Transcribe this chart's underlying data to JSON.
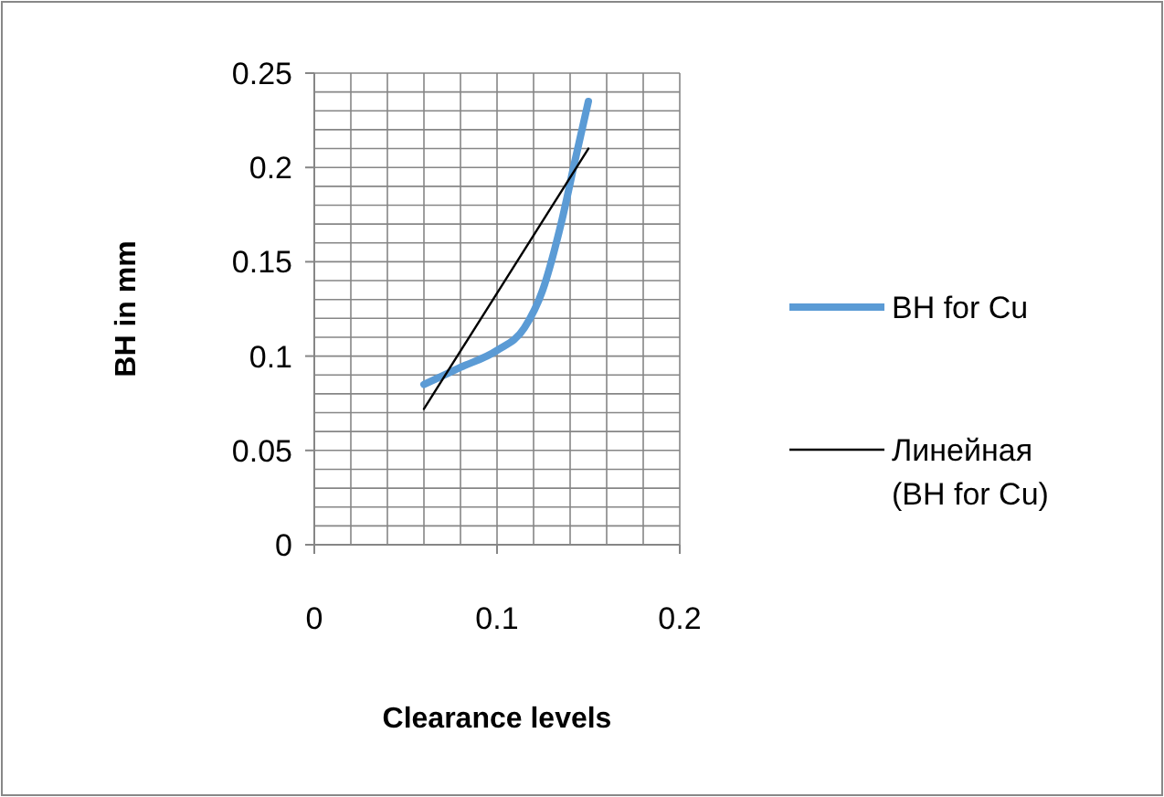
{
  "chart_data": {
    "type": "line",
    "xlabel": "Clearance levels",
    "ylabel": "BH in mm",
    "xlim": [
      0,
      0.2
    ],
    "ylim": [
      0,
      0.25
    ],
    "xticks": [
      0,
      {
        "value": 0.02,
        "label": null
      },
      {
        "value": 0.04,
        "label": null
      },
      {
        "value": 0.06,
        "label": null
      },
      {
        "value": 0.08,
        "label": null
      },
      0.1,
      {
        "value": 0.12,
        "label": null
      },
      {
        "value": 0.14,
        "label": null
      },
      {
        "value": 0.16,
        "label": null
      },
      {
        "value": 0.18,
        "label": null
      },
      0.2
    ],
    "yticks": [
      0,
      {
        "value": 0.01,
        "label": null
      },
      {
        "value": 0.02,
        "label": null
      },
      {
        "value": 0.03,
        "label": null
      },
      {
        "value": 0.04,
        "label": null
      },
      0.05,
      {
        "value": 0.06,
        "label": null
      },
      {
        "value": 0.07,
        "label": null
      },
      {
        "value": 0.08,
        "label": null
      },
      {
        "value": 0.09,
        "label": null
      },
      0.1,
      {
        "value": 0.11,
        "label": null
      },
      {
        "value": 0.12,
        "label": null
      },
      {
        "value": 0.13,
        "label": null
      },
      {
        "value": 0.14,
        "label": null
      },
      0.15,
      {
        "value": 0.16,
        "label": null
      },
      {
        "value": 0.17,
        "label": null
      },
      {
        "value": 0.18,
        "label": null
      },
      {
        "value": 0.19,
        "label": null
      },
      0.2,
      {
        "value": 0.21,
        "label": null
      },
      {
        "value": 0.22,
        "label": null
      },
      {
        "value": 0.23,
        "label": null
      },
      {
        "value": 0.24,
        "label": null
      },
      0.25
    ],
    "grid": true,
    "legend": "right",
    "series": [
      {
        "name": "BH for Cu",
        "color": "#5b9bd5",
        "x": [
          0.06,
          0.08,
          0.1,
          0.115,
          0.125,
          0.135,
          0.143,
          0.15
        ],
        "values": [
          0.085,
          0.094,
          0.103,
          0.115,
          0.135,
          0.17,
          0.205,
          0.235
        ]
      },
      {
        "name": "Линейная (BH for Cu)",
        "color": "#000000",
        "x": [
          0.06,
          0.15
        ],
        "values": [
          0.072,
          0.21
        ]
      }
    ]
  }
}
